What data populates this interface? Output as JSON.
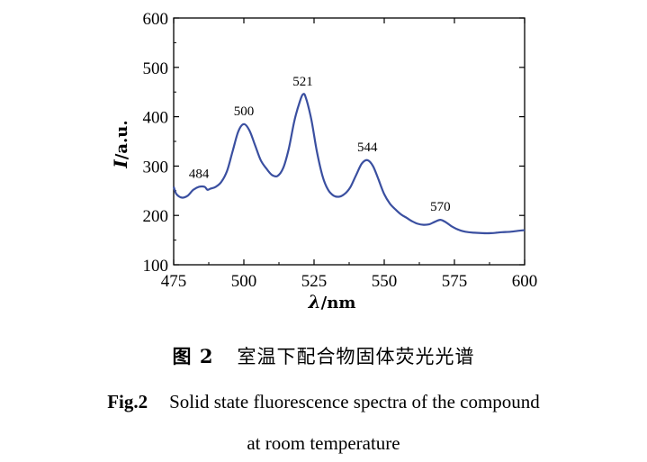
{
  "chart_data": {
    "type": "line",
    "xlabel_symbol": "λ",
    "xlabel_unit": "/nm",
    "ylabel_symbol": "I",
    "ylabel_unit": "/a.u.",
    "xlim": [
      475,
      600
    ],
    "ylim": [
      100,
      600
    ],
    "x_ticks": [
      "475",
      "500",
      "525",
      "550",
      "575",
      "600"
    ],
    "y_ticks": [
      "100",
      "200",
      "300",
      "400",
      "500",
      "600"
    ],
    "series": [
      {
        "color": "#3a4fa0",
        "points": [
          [
            475,
            258
          ],
          [
            476,
            243
          ],
          [
            478,
            236
          ],
          [
            480,
            240
          ],
          [
            482,
            252
          ],
          [
            484,
            258
          ],
          [
            486,
            258
          ],
          [
            487,
            252
          ],
          [
            488,
            254
          ],
          [
            490,
            258
          ],
          [
            492,
            268
          ],
          [
            494,
            290
          ],
          [
            496,
            330
          ],
          [
            498,
            370
          ],
          [
            500,
            385
          ],
          [
            502,
            372
          ],
          [
            504,
            342
          ],
          [
            506,
            312
          ],
          [
            508,
            295
          ],
          [
            510,
            282
          ],
          [
            512,
            280
          ],
          [
            514,
            296
          ],
          [
            516,
            335
          ],
          [
            518,
            392
          ],
          [
            520,
            432
          ],
          [
            521,
            445
          ],
          [
            522,
            440
          ],
          [
            524,
            395
          ],
          [
            526,
            330
          ],
          [
            528,
            280
          ],
          [
            530,
            252
          ],
          [
            532,
            240
          ],
          [
            534,
            238
          ],
          [
            536,
            244
          ],
          [
            538,
            258
          ],
          [
            540,
            282
          ],
          [
            542,
            305
          ],
          [
            544,
            312
          ],
          [
            546,
            300
          ],
          [
            548,
            272
          ],
          [
            550,
            243
          ],
          [
            552,
            224
          ],
          [
            554,
            212
          ],
          [
            556,
            202
          ],
          [
            558,
            195
          ],
          [
            560,
            188
          ],
          [
            562,
            183
          ],
          [
            564,
            181
          ],
          [
            566,
            182
          ],
          [
            568,
            187
          ],
          [
            570,
            191
          ],
          [
            572,
            186
          ],
          [
            574,
            178
          ],
          [
            576,
            172
          ],
          [
            578,
            168
          ],
          [
            580,
            166
          ],
          [
            582,
            165
          ],
          [
            585,
            164
          ],
          [
            588,
            164
          ],
          [
            590,
            165
          ],
          [
            592,
            166
          ],
          [
            595,
            167
          ],
          [
            598,
            169
          ],
          [
            600,
            170
          ]
        ]
      }
    ],
    "peaks": [
      {
        "label": "484",
        "x": 484,
        "y": 258
      },
      {
        "label": "500",
        "x": 500,
        "y": 385
      },
      {
        "label": "521",
        "x": 521,
        "y": 445
      },
      {
        "label": "544",
        "x": 544,
        "y": 312
      },
      {
        "label": "570",
        "x": 570,
        "y": 191
      }
    ],
    "grid": false,
    "legend": "none"
  },
  "caption": {
    "cn_fig": "图 2",
    "cn_text": "室温下配合物固体荧光光谱",
    "en_fig": "Fig.2",
    "en_line1": "Solid state fluorescence spectra of the compound",
    "en_line2": "at room temperature"
  }
}
